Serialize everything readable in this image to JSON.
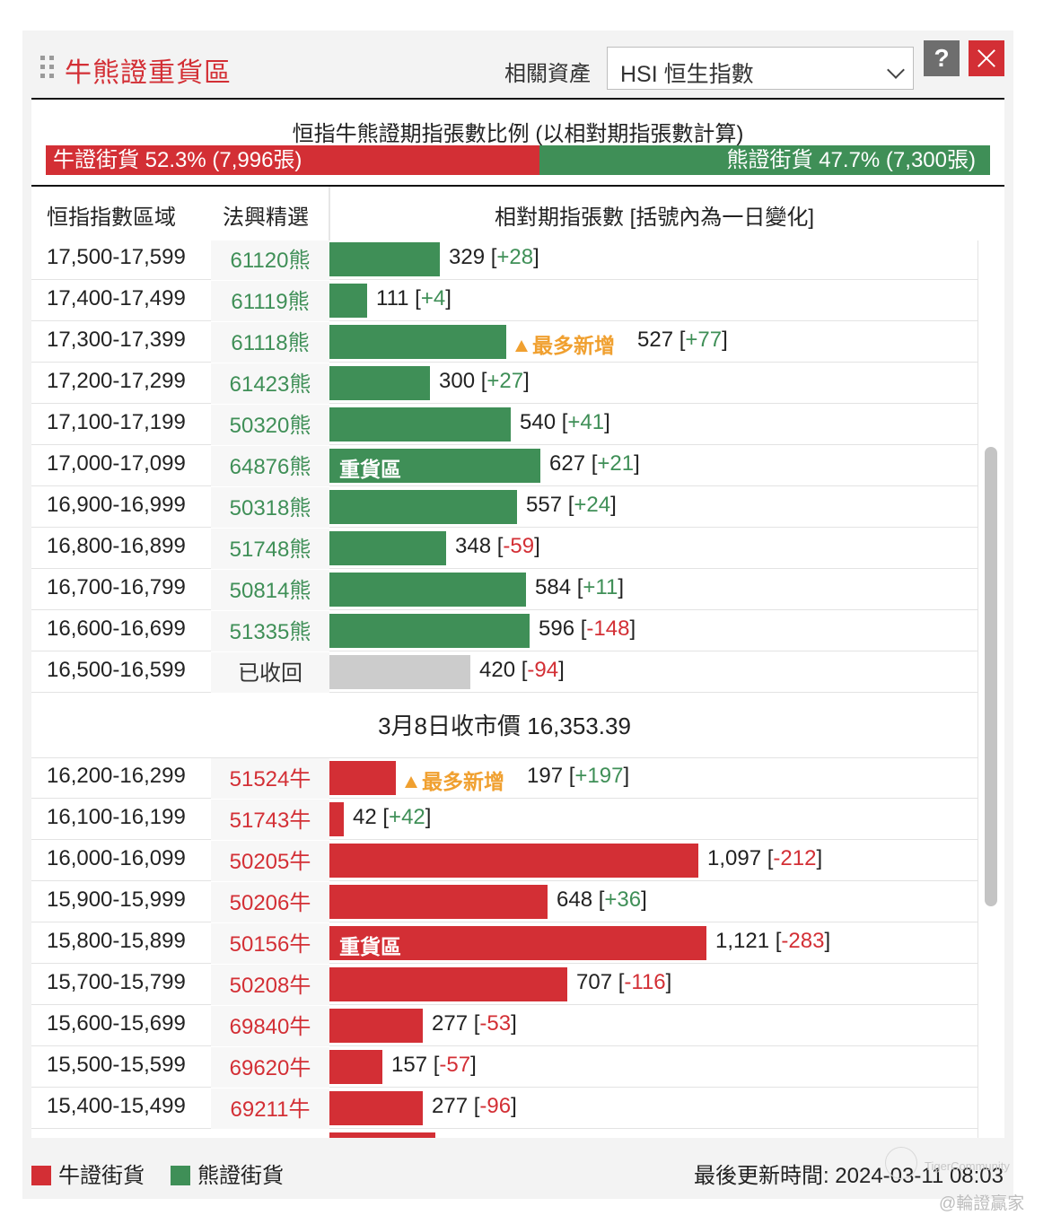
{
  "header": {
    "title": "牛熊證重貨區",
    "asset_label": "相關資產",
    "asset_value": "HSI 恒生指數",
    "help_label": "?"
  },
  "ratio": {
    "title": "恒指牛熊證期指張數比例 (以相對期指張數計算)",
    "bull_text": "牛證街貨 52.3% (7,996張)",
    "bear_text": "熊證街貨 47.7% (7,300張)",
    "bull_share": 0.523,
    "bear_share": 0.477
  },
  "table": {
    "col_range": "恒指指數區域",
    "col_code": "法興精選",
    "col_count": "相對期指張數 [括號內為一日變化]",
    "bear_rows": [
      {
        "range": "17,500-17,599",
        "code": "61120熊",
        "count": "329",
        "change": "+28",
        "value": 329
      },
      {
        "range": "17,400-17,499",
        "code": "61119熊",
        "count": "111",
        "change": "+4",
        "value": 111
      },
      {
        "range": "17,300-17,399",
        "code": "61118熊",
        "count": "527",
        "change": "+77",
        "value": 527,
        "hot": "最多新增"
      },
      {
        "range": "17,200-17,299",
        "code": "61423熊",
        "count": "300",
        "change": "+27",
        "value": 300
      },
      {
        "range": "17,100-17,199",
        "code": "50320熊",
        "count": "540",
        "change": "+41",
        "value": 540
      },
      {
        "range": "17,000-17,099",
        "code": "64876熊",
        "count": "627",
        "change": "+21",
        "value": 627,
        "tag": "重貨區"
      },
      {
        "range": "16,900-16,999",
        "code": "50318熊",
        "count": "557",
        "change": "+24",
        "value": 557
      },
      {
        "range": "16,800-16,899",
        "code": "51748熊",
        "count": "348",
        "change": "-59",
        "value": 348
      },
      {
        "range": "16,700-16,799",
        "code": "50814熊",
        "count": "584",
        "change": "+11",
        "value": 584
      },
      {
        "range": "16,600-16,699",
        "code": "51335熊",
        "count": "596",
        "change": "-148",
        "value": 596
      },
      {
        "range": "16,500-16,599",
        "code": "已收回",
        "count": "420",
        "change": "-94",
        "value": 420,
        "recalled": true
      }
    ],
    "close_label": "3月8日收市價 16,353.39",
    "bull_rows": [
      {
        "range": "16,200-16,299",
        "code": "51524牛",
        "count": "197",
        "change": "+197",
        "value": 197,
        "hot": "最多新增"
      },
      {
        "range": "16,100-16,199",
        "code": "51743牛",
        "count": "42",
        "change": "+42",
        "value": 42
      },
      {
        "range": "16,000-16,099",
        "code": "50205牛",
        "count": "1,097",
        "change": "-212",
        "value": 1097
      },
      {
        "range": "15,900-15,999",
        "code": "50206牛",
        "count": "648",
        "change": "+36",
        "value": 648
      },
      {
        "range": "15,800-15,899",
        "code": "50156牛",
        "count": "1,121",
        "change": "-283",
        "value": 1121,
        "tag": "重貨區"
      },
      {
        "range": "15,700-15,799",
        "code": "50208牛",
        "count": "707",
        "change": "-116",
        "value": 707
      },
      {
        "range": "15,600-15,699",
        "code": "69840牛",
        "count": "277",
        "change": "-53",
        "value": 277
      },
      {
        "range": "15,500-15,599",
        "code": "69620牛",
        "count": "157",
        "change": "-57",
        "value": 157
      },
      {
        "range": "15,400-15,499",
        "code": "69211牛",
        "count": "277",
        "change": "-96",
        "value": 277
      }
    ]
  },
  "legend": {
    "bull": "牛證街貨",
    "bear": "熊證街貨"
  },
  "updated": "最後更新時間: 2024-03-11 08:03",
  "watermark": {
    "text1": "TigerCommunity",
    "text2": "@輪證贏家"
  },
  "colors": {
    "bull": "#d32f35",
    "bear": "#3f8f57",
    "recalled": "#cccccc",
    "hot": "#f0a030"
  }
}
